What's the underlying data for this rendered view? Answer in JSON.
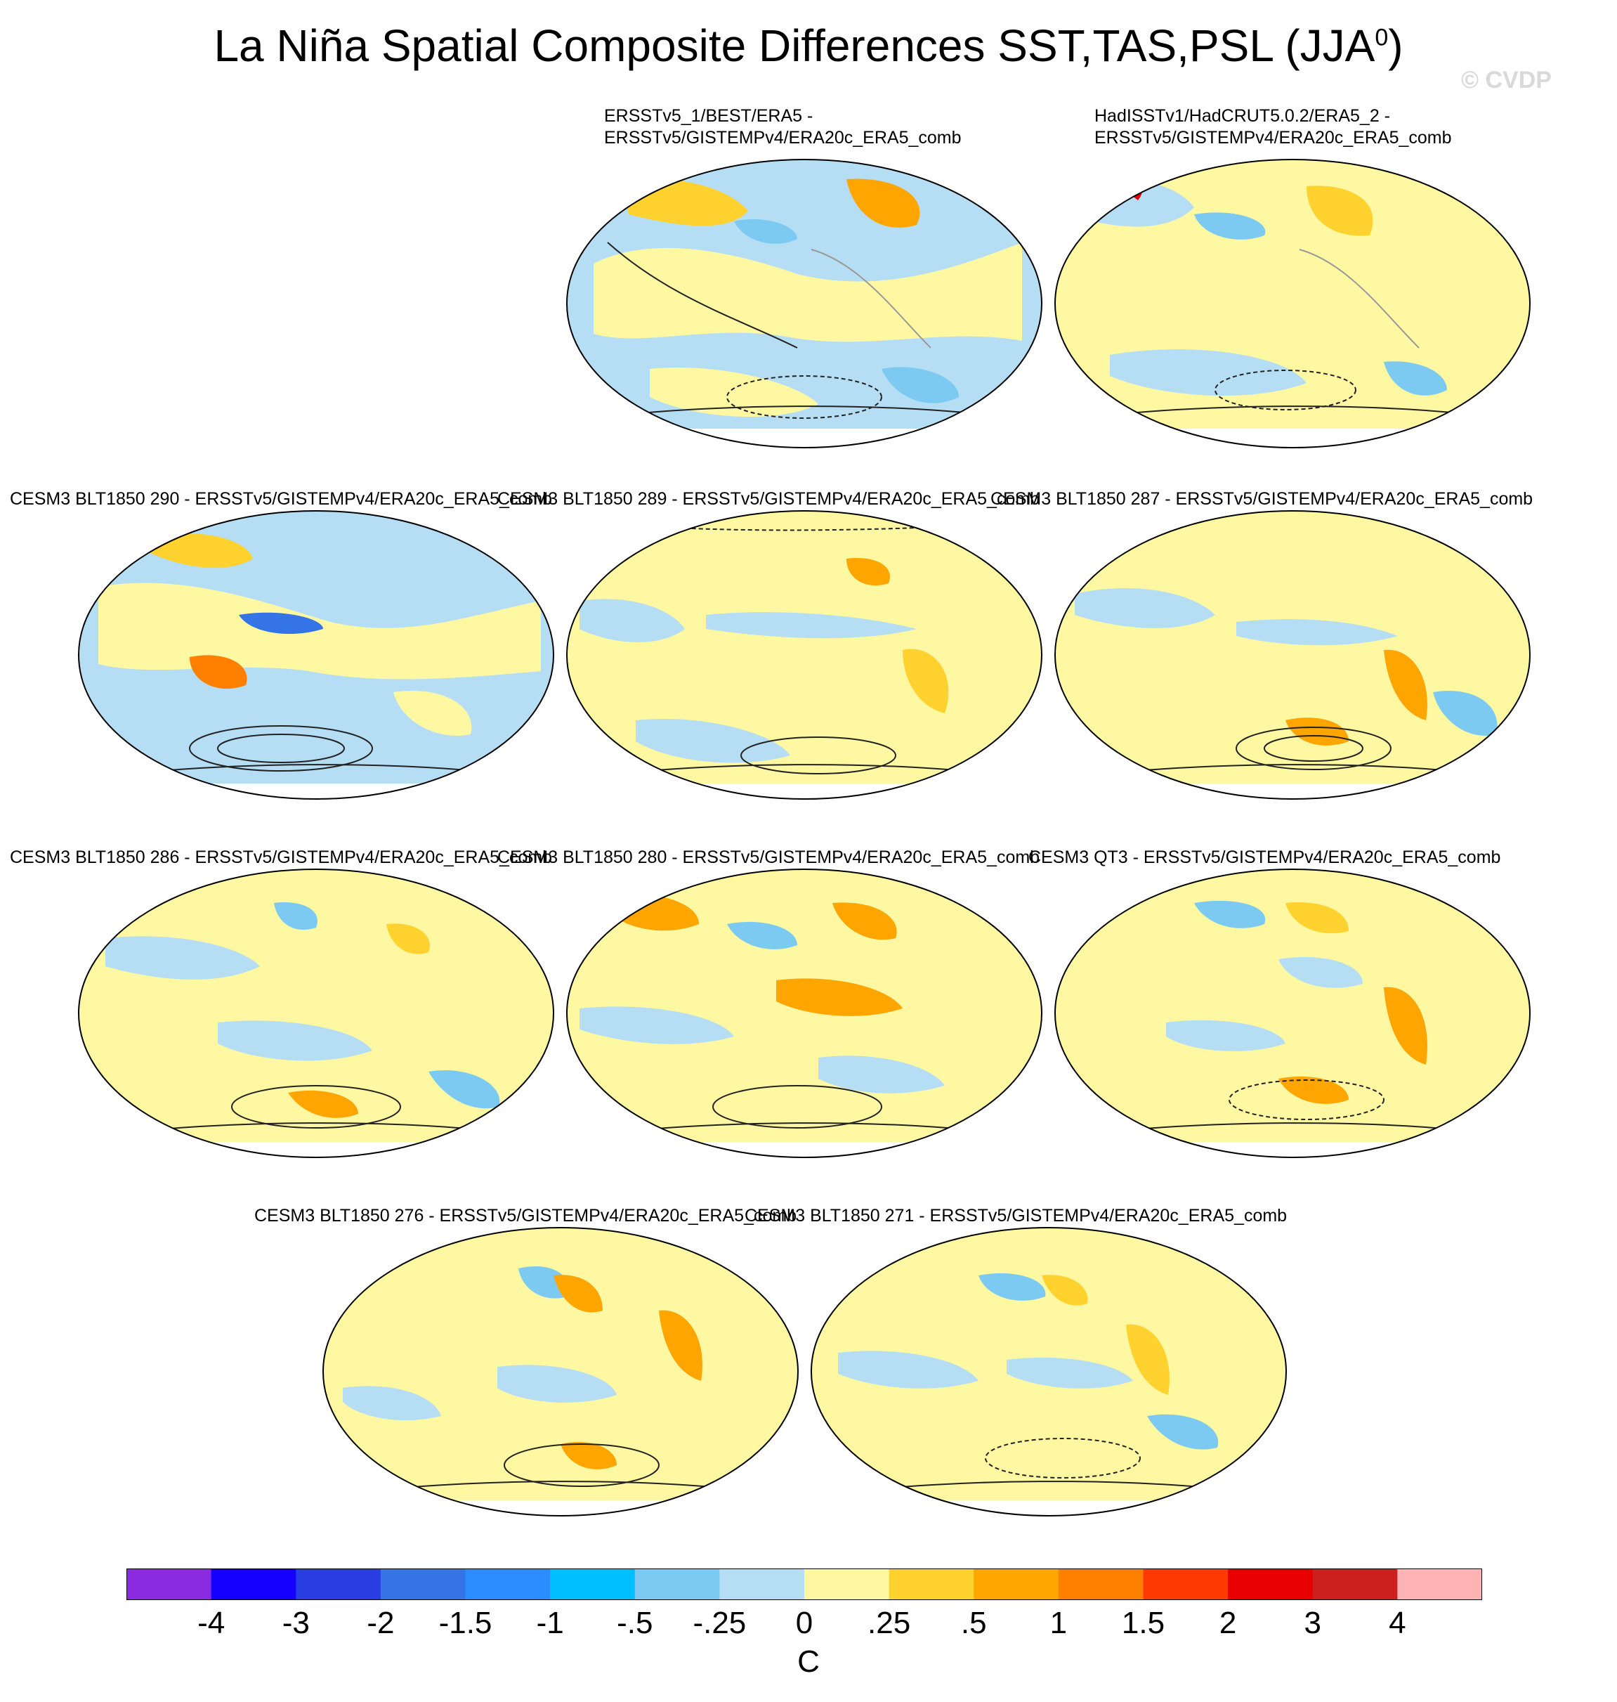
{
  "title": "La Niña Spatial Composite Differences SST,TAS,PSL (JJA",
  "title_superscript": "0",
  "title_close": ")",
  "watermark": "© CVDP",
  "panels": [
    {
      "line1": "ERSSTv5_1/BEST/ERA5 -",
      "line2": "ERSSTv5/GISTEMPv4/ERA20c_ERA5_comb"
    },
    {
      "line1": "HadISSTv1/HadCRUT5.0.2/ERA5_2 -",
      "line2": "ERSSTv5/GISTEMPv4/ERA20c_ERA5_comb"
    },
    {
      "line1": "CESM3 BLT1850 290 - ERSSTv5/GISTEMPv4/ERA20c_ERA5_comb"
    },
    {
      "line1": "CESM3 BLT1850 289 - ERSSTv5/GISTEMPv4/ERA20c_ERA5_comb"
    },
    {
      "line1": "CESM3 BLT1850 287 - ERSSTv5/GISTEMPv4/ERA20c_ERA5_comb"
    },
    {
      "line1": "CESM3 BLT1850 286 - ERSSTv5/GISTEMPv4/ERA20c_ERA5_comb"
    },
    {
      "line1": "CESM3 BLT1850 280 - ERSSTv5/GISTEMPv4/ERA20c_ERA5_comb"
    },
    {
      "line1": "CESM3 QT3 - ERSSTv5/GISTEMPv4/ERA20c_ERA5_comb"
    },
    {
      "line1": "CESM3 BLT1850 276 - ERSSTv5/GISTEMPv4/ERA20c_ERA5_comb"
    },
    {
      "line1": "CESM3 BLT1850 271 - ERSSTv5/GISTEMPv4/ERA20c_ERA5_comb"
    }
  ],
  "colorbar": {
    "colors": [
      "#8a2be2",
      "#1400ff",
      "#2a3de0",
      "#3474e6",
      "#2b8cff",
      "#00bfff",
      "#7ccaf2",
      "#b5def4",
      "#fff8a3",
      "#ffd230",
      "#ffa500",
      "#ff7f00",
      "#ff3a00",
      "#e80000",
      "#cc2020",
      "#ffb3b3"
    ],
    "ticks": [
      "-4",
      "-3",
      "-2",
      "-1.5",
      "-1",
      "-.5",
      "-.25",
      "0",
      ".25",
      ".5",
      "1",
      "1.5",
      "2",
      "3",
      "4"
    ],
    "unit": "C"
  }
}
